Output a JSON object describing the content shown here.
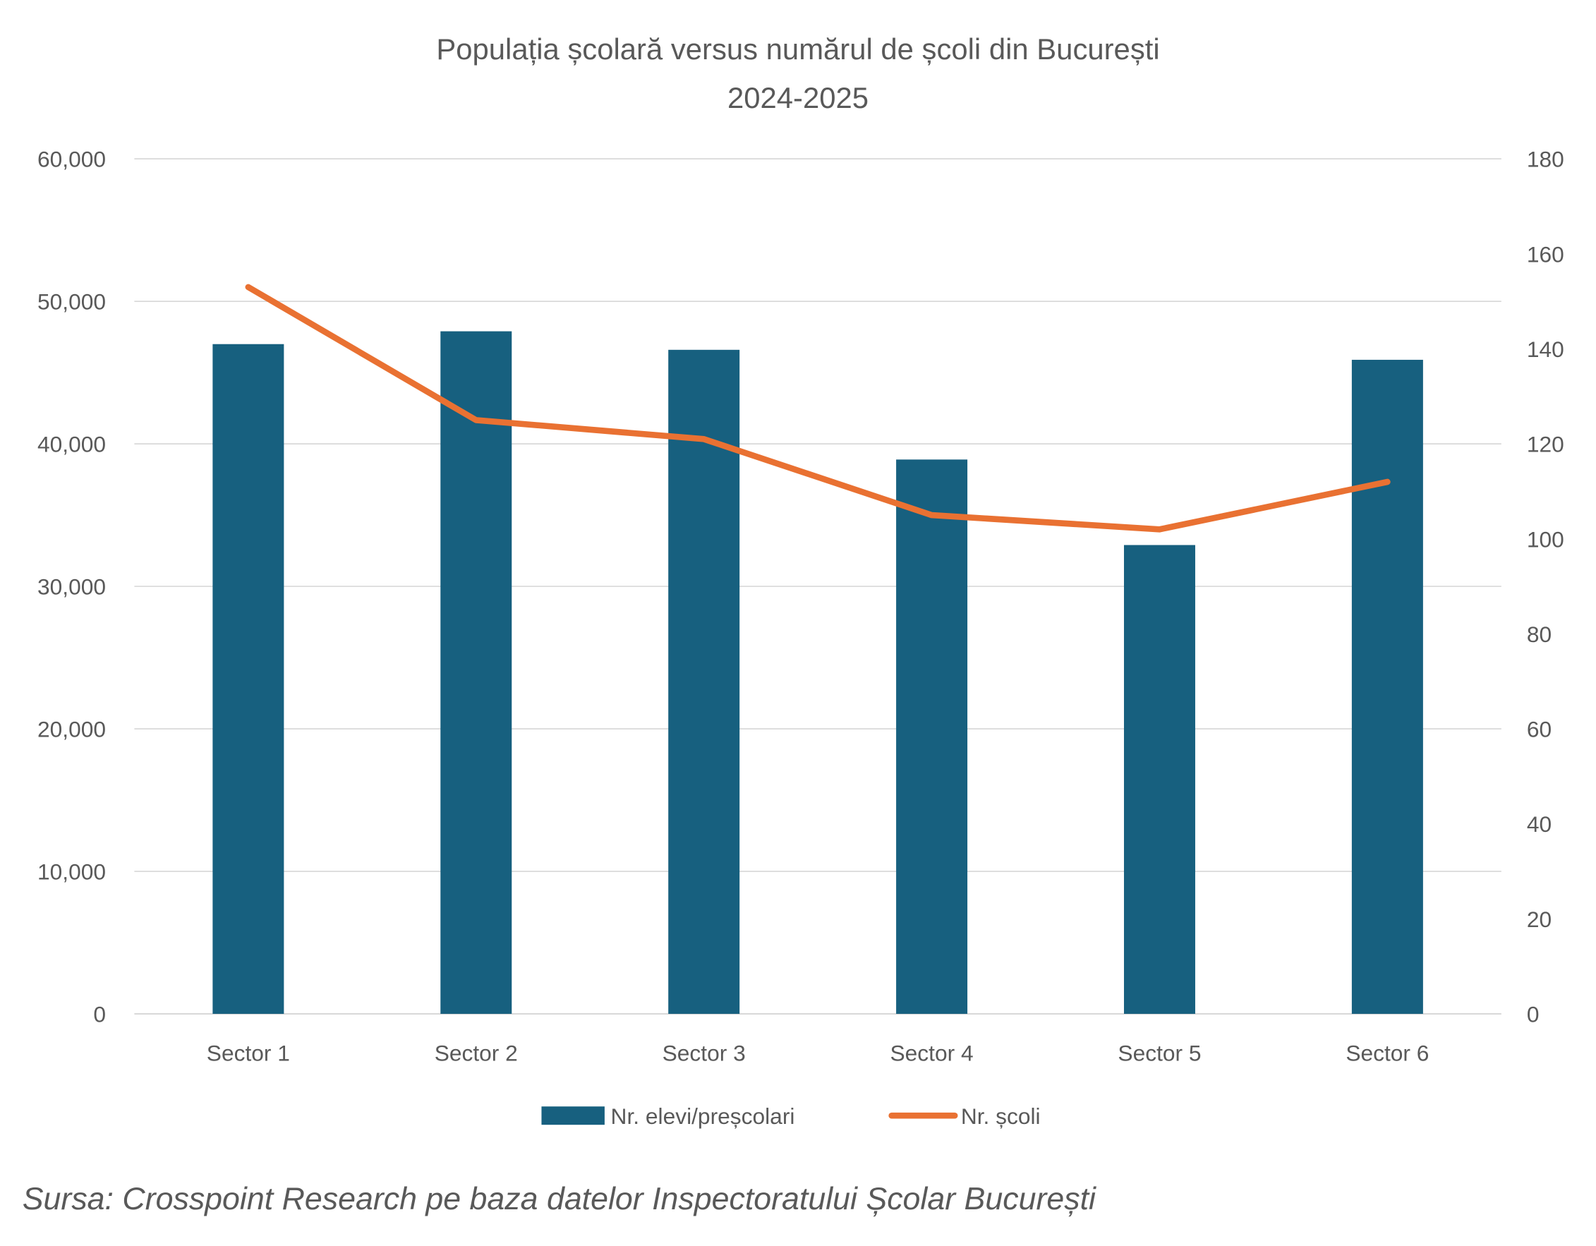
{
  "chart_data": {
    "type": "bar+line",
    "title": "Populația școlară versus numărul de școli din București",
    "subtitle": "2024-2025",
    "categories": [
      "Sector 1",
      "Sector 2",
      "Sector 3",
      "Sector 4",
      "Sector 5",
      "Sector 6"
    ],
    "series": [
      {
        "name": "Nr. elevi/preșcolari",
        "type": "bar",
        "axis": "left",
        "color": "#17607F",
        "values": [
          47000,
          47900,
          46600,
          38900,
          32900,
          45900
        ]
      },
      {
        "name": "Nr. școli",
        "type": "line",
        "axis": "right",
        "color": "#E97132",
        "values": [
          153,
          125,
          121,
          105,
          102,
          112
        ]
      }
    ],
    "y_left": {
      "ylim": [
        0,
        60000
      ],
      "ticks": [
        "0",
        "10,000",
        "20,000",
        "30,000",
        "40,000",
        "50,000",
        "60,000"
      ],
      "tick_values": [
        0,
        10000,
        20000,
        30000,
        40000,
        50000,
        60000
      ]
    },
    "y_right": {
      "ylim": [
        0,
        180
      ],
      "ticks": [
        "0",
        "20",
        "40",
        "60",
        "80",
        "100",
        "120",
        "140",
        "160",
        "180"
      ],
      "tick_values": [
        0,
        20,
        40,
        60,
        80,
        100,
        120,
        140,
        160,
        180
      ]
    },
    "grid": true,
    "legend_position": "bottom",
    "source": "Sursa: Crosspoint Research pe baza datelor Inspectoratului Școlar București"
  }
}
